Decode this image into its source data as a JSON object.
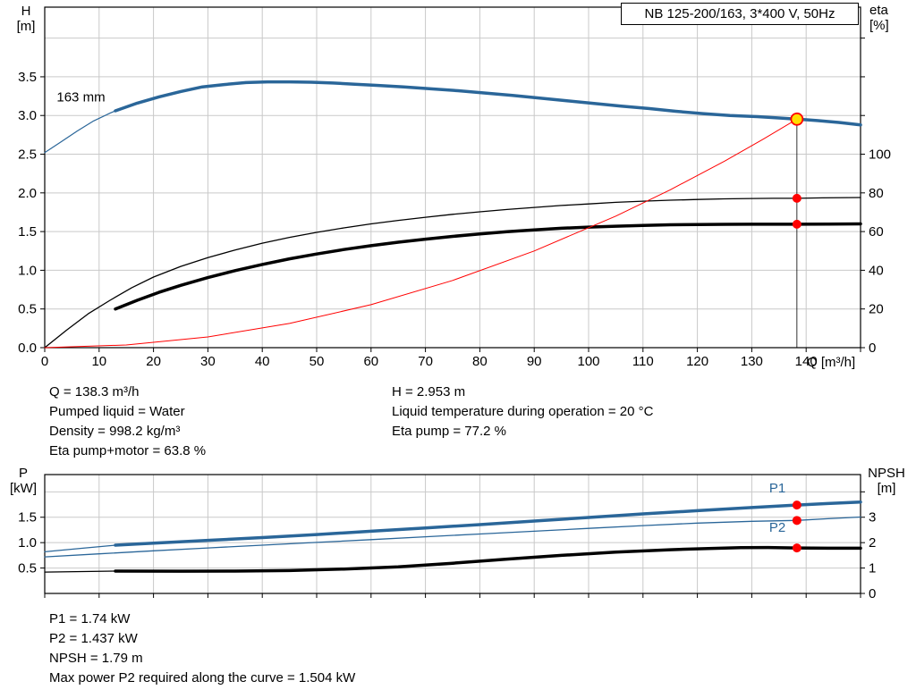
{
  "colors": {
    "blue": "#2a6699",
    "red": "#ff0000",
    "black": "#000000",
    "grid": "#c9c9c9",
    "duty_fill": "#ffdd00",
    "axis": "#000000",
    "background": "#ffffff"
  },
  "title_box": "NB 125-200/163, 3*400 V, 50Hz",
  "axis_labels": {
    "h": "H",
    "h_unit": "[m]",
    "eta": "eta",
    "eta_unit": "[%]",
    "q": "Q [m³/h]",
    "p": "P",
    "p_unit": "[kW]",
    "npsh": "NPSH",
    "npsh_unit": "[m]"
  },
  "operating_point": {
    "Q": 138.3,
    "H": 2.953,
    "eta_pump": 77.2,
    "eta_pump_motor": 63.8,
    "P1": 1.74,
    "P2": 1.437,
    "NPSH": 1.79
  },
  "info_top": {
    "col1": [
      "Q = 138.3 m³/h",
      "Pumped liquid = Water",
      "Density = 998.2 kg/m³",
      "Eta pump+motor = 63.8 %"
    ],
    "col2": [
      "H = 2.953 m",
      "Liquid temperature during operation = 20 °C",
      "Eta pump = 77.2 %"
    ]
  },
  "info_bottom": [
    "P1 = 1.74 kW",
    "P2 = 1.437 kW",
    "NPSH = 1.79 m",
    "Max power P2 required along the curve = 1.504 kW"
  ],
  "chart_data": [
    {
      "type": "line",
      "title": "NB 125-200/163, 3*400 V, 50Hz",
      "xlabel": "Q [m³/h]",
      "ylabel_left": "H [m]",
      "ylabel_right": "eta [%]",
      "xlim": [
        0,
        150
      ],
      "ylim_left": [
        0,
        4.4
      ],
      "ylim_right": [
        0,
        176
      ],
      "grid": {
        "x_step": 10,
        "left_step": 0.5
      },
      "x_ticks": [
        0,
        10,
        20,
        30,
        40,
        50,
        60,
        70,
        80,
        90,
        100,
        110,
        120,
        130,
        140,
        150
      ],
      "x_tick_labels": [
        "0",
        "10",
        "20",
        "30",
        "40",
        "50",
        "60",
        "70",
        "80",
        "90",
        "100",
        "110",
        "120",
        "130",
        "140",
        ""
      ],
      "left_ticks": [
        0,
        0.5,
        1,
        1.5,
        2,
        2.5,
        3,
        3.5
      ],
      "left_tick_labels": [
        "0.0",
        "0.5",
        "1.0",
        "1.5",
        "2.0",
        "2.5",
        "3.0",
        "3.5"
      ],
      "right_ticks": [
        0,
        20,
        40,
        60,
        80,
        100,
        120,
        140,
        160
      ],
      "right_tick_labels": [
        "0",
        "20",
        "40",
        "60",
        "80",
        "100",
        "",
        "",
        ""
      ],
      "series": [
        {
          "name": "head-curve-lead",
          "axis": "left",
          "color": "blue",
          "width": 1.2,
          "points": [
            [
              0,
              2.52
            ],
            [
              3,
              2.66
            ],
            [
              6,
              2.8
            ],
            [
              9,
              2.93
            ],
            [
              12,
              3.03
            ],
            [
              14,
              3.09
            ]
          ]
        },
        {
          "name": "head-curve-163mm",
          "axis": "left",
          "color": "blue",
          "width": 3.5,
          "points": [
            [
              13,
              3.06
            ],
            [
              17,
              3.16
            ],
            [
              21,
              3.24
            ],
            [
              25,
              3.31
            ],
            [
              29,
              3.37
            ],
            [
              33,
              3.4
            ],
            [
              37,
              3.425
            ],
            [
              41,
              3.435
            ],
            [
              45,
              3.435
            ],
            [
              49,
              3.43
            ],
            [
              53,
              3.42
            ],
            [
              57,
              3.405
            ],
            [
              61,
              3.39
            ],
            [
              66,
              3.37
            ],
            [
              71,
              3.345
            ],
            [
              76,
              3.32
            ],
            [
              81,
              3.29
            ],
            [
              86,
              3.26
            ],
            [
              91,
              3.225
            ],
            [
              96,
              3.19
            ],
            [
              101,
              3.155
            ],
            [
              106,
              3.12
            ],
            [
              111,
              3.09
            ],
            [
              116,
              3.055
            ],
            [
              121,
              3.025
            ],
            [
              126,
              3.0
            ],
            [
              131,
              2.985
            ],
            [
              135,
              2.968
            ],
            [
              138.3,
              2.953
            ],
            [
              142,
              2.935
            ],
            [
              146,
              2.91
            ],
            [
              150,
              2.878
            ]
          ]
        },
        {
          "name": "eta-pump-curve",
          "axis": "right",
          "color": "black",
          "width": 1.3,
          "points": [
            [
              0,
              0
            ],
            [
              4,
              9
            ],
            [
              8,
              17.5
            ],
            [
              12,
              24.5
            ],
            [
              16,
              31
            ],
            [
              20,
              36.5
            ],
            [
              25,
              42
            ],
            [
              30,
              46.5
            ],
            [
              35,
              50.5
            ],
            [
              40,
              54
            ],
            [
              45,
              57
            ],
            [
              50,
              59.6
            ],
            [
              55,
              61.9
            ],
            [
              60,
              64
            ],
            [
              65,
              65.8
            ],
            [
              70,
              67.4
            ],
            [
              75,
              68.9
            ],
            [
              80,
              70.2
            ],
            [
              85,
              71.4
            ],
            [
              90,
              72.5
            ],
            [
              95,
              73.5
            ],
            [
              100,
              74.3
            ],
            [
              105,
              75.1
            ],
            [
              110,
              75.7
            ],
            [
              115,
              76.2
            ],
            [
              120,
              76.6
            ],
            [
              125,
              76.9
            ],
            [
              130,
              77.1
            ],
            [
              134,
              77.18
            ],
            [
              138.3,
              77.2
            ],
            [
              143,
              77.4
            ],
            [
              150,
              77.6
            ]
          ]
        },
        {
          "name": "eta-pump-motor-curve",
          "axis": "right",
          "color": "black",
          "width": 3.5,
          "points": [
            [
              13,
              20
            ],
            [
              17,
              24.5
            ],
            [
              21,
              28.6
            ],
            [
              25,
              32.2
            ],
            [
              30,
              36.2
            ],
            [
              35,
              39.8
            ],
            [
              40,
              43
            ],
            [
              45,
              45.9
            ],
            [
              50,
              48.4
            ],
            [
              55,
              50.7
            ],
            [
              60,
              52.7
            ],
            [
              65,
              54.5
            ],
            [
              70,
              56.1
            ],
            [
              75,
              57.5
            ],
            [
              80,
              58.8
            ],
            [
              85,
              59.9
            ],
            [
              90,
              60.9
            ],
            [
              95,
              61.7
            ],
            [
              100,
              62.3
            ],
            [
              105,
              62.8
            ],
            [
              110,
              63.2
            ],
            [
              115,
              63.5
            ],
            [
              120,
              63.65
            ],
            [
              125,
              63.75
            ],
            [
              130,
              63.8
            ],
            [
              138.3,
              63.8
            ],
            [
              144,
              63.9
            ],
            [
              150,
              64.0
            ]
          ]
        },
        {
          "name": "system-curve",
          "axis": "left",
          "color": "red",
          "width": 1,
          "points": [
            [
              0,
              0
            ],
            [
              15,
              0.035
            ],
            [
              30,
              0.139
            ],
            [
              45,
              0.313
            ],
            [
              60,
              0.556
            ],
            [
              75,
              0.868
            ],
            [
              90,
              1.25
            ],
            [
              105,
              1.7
            ],
            [
              115,
              2.04
            ],
            [
              125,
              2.41
            ],
            [
              132,
              2.69
            ],
            [
              138.3,
              2.953
            ]
          ]
        }
      ],
      "guides": [
        {
          "x": 138.3,
          "y_from": 0,
          "y_to": 2.953,
          "axis": "left"
        }
      ],
      "markers": [
        {
          "x": 138.3,
          "y": 77.2,
          "axis": "right",
          "style": "red-dot"
        },
        {
          "x": 138.3,
          "y": 63.8,
          "axis": "right",
          "style": "red-dot"
        },
        {
          "x": 138.3,
          "y": 2.953,
          "axis": "left",
          "style": "duty-point"
        }
      ],
      "annotations": [
        {
          "text": "163 mm",
          "x": 2.2,
          "y": 3.18,
          "axis": "left",
          "color": "black"
        }
      ]
    },
    {
      "type": "line",
      "title": "",
      "xlabel": "Q [m³/h]",
      "ylabel_left": "P [kW]",
      "ylabel_right": "NPSH [m]",
      "xlim": [
        0,
        150
      ],
      "ylim_left": [
        0,
        2.34
      ],
      "ylim_right": [
        0,
        4.68
      ],
      "grid": {
        "x_step": 10,
        "left_step": 0.5
      },
      "x_ticks": [
        0,
        10,
        20,
        30,
        40,
        50,
        60,
        70,
        80,
        90,
        100,
        110,
        120,
        130,
        140,
        150
      ],
      "x_tick_labels": [
        "",
        "",
        "",
        "",
        "",
        "",
        "",
        "",
        "",
        "",
        "",
        "",
        "",
        "",
        "",
        ""
      ],
      "left_ticks": [
        0.5,
        1,
        1.5
      ],
      "left_tick_labels": [
        "0.5",
        "1.0",
        "1.5"
      ],
      "right_ticks": [
        0,
        1,
        2,
        3,
        4
      ],
      "right_tick_labels": [
        "0",
        "1",
        "2",
        "3",
        ""
      ],
      "series": [
        {
          "name": "p1-curve-lead",
          "axis": "left",
          "color": "blue",
          "width": 1.2,
          "points": [
            [
              0,
              0.82
            ],
            [
              7,
              0.89
            ],
            [
              13,
              0.95
            ]
          ]
        },
        {
          "name": "p1-curve",
          "axis": "left",
          "color": "blue",
          "width": 3.5,
          "points": [
            [
              13,
              0.95
            ],
            [
              20,
              0.99
            ],
            [
              30,
              1.045
            ],
            [
              40,
              1.1
            ],
            [
              50,
              1.16
            ],
            [
              60,
              1.225
            ],
            [
              70,
              1.29
            ],
            [
              80,
              1.355
            ],
            [
              90,
              1.425
            ],
            [
              100,
              1.495
            ],
            [
              110,
              1.565
            ],
            [
              120,
              1.63
            ],
            [
              130,
              1.69
            ],
            [
              138.3,
              1.74
            ],
            [
              144,
              1.77
            ],
            [
              150,
              1.8
            ]
          ]
        },
        {
          "name": "p2-curve",
          "axis": "left",
          "color": "blue",
          "width": 1.3,
          "points": [
            [
              0,
              0.72
            ],
            [
              10,
              0.78
            ],
            [
              20,
              0.84
            ],
            [
              30,
              0.895
            ],
            [
              40,
              0.95
            ],
            [
              50,
              1.005
            ],
            [
              60,
              1.06
            ],
            [
              70,
              1.115
            ],
            [
              80,
              1.17
            ],
            [
              90,
              1.225
            ],
            [
              100,
              1.28
            ],
            [
              110,
              1.335
            ],
            [
              120,
              1.385
            ],
            [
              130,
              1.42
            ],
            [
              138.3,
              1.437
            ],
            [
              144,
              1.47
            ],
            [
              150,
              1.504
            ]
          ]
        },
        {
          "name": "npsh-curve-lead",
          "axis": "right",
          "color": "black",
          "width": 1.2,
          "points": [
            [
              0,
              0.84
            ],
            [
              13,
              0.88
            ]
          ]
        },
        {
          "name": "npsh-curve",
          "axis": "right",
          "color": "black",
          "width": 3.5,
          "points": [
            [
              13,
              0.88
            ],
            [
              25,
              0.875
            ],
            [
              35,
              0.88
            ],
            [
              45,
              0.9
            ],
            [
              55,
              0.96
            ],
            [
              65,
              1.05
            ],
            [
              75,
              1.19
            ],
            [
              85,
              1.35
            ],
            [
              95,
              1.5
            ],
            [
              105,
              1.63
            ],
            [
              115,
              1.72
            ],
            [
              122,
              1.77
            ],
            [
              128,
              1.8
            ],
            [
              133,
              1.81
            ],
            [
              138.3,
              1.79
            ],
            [
              144,
              1.78
            ],
            [
              150,
              1.78
            ]
          ]
        }
      ],
      "guides": [],
      "markers": [
        {
          "x": 138.3,
          "y": 1.74,
          "axis": "left",
          "style": "red-dot"
        },
        {
          "x": 138.3,
          "y": 1.437,
          "axis": "left",
          "style": "red-dot"
        },
        {
          "x": 138.3,
          "y": 1.79,
          "axis": "right",
          "style": "red-dot"
        }
      ],
      "annotations": [
        {
          "text": "P1",
          "x": 133.2,
          "y": 1.99,
          "axis": "left",
          "color": "blue"
        },
        {
          "text": "P2",
          "x": 133.2,
          "y": 1.21,
          "axis": "left",
          "color": "blue"
        }
      ]
    }
  ]
}
